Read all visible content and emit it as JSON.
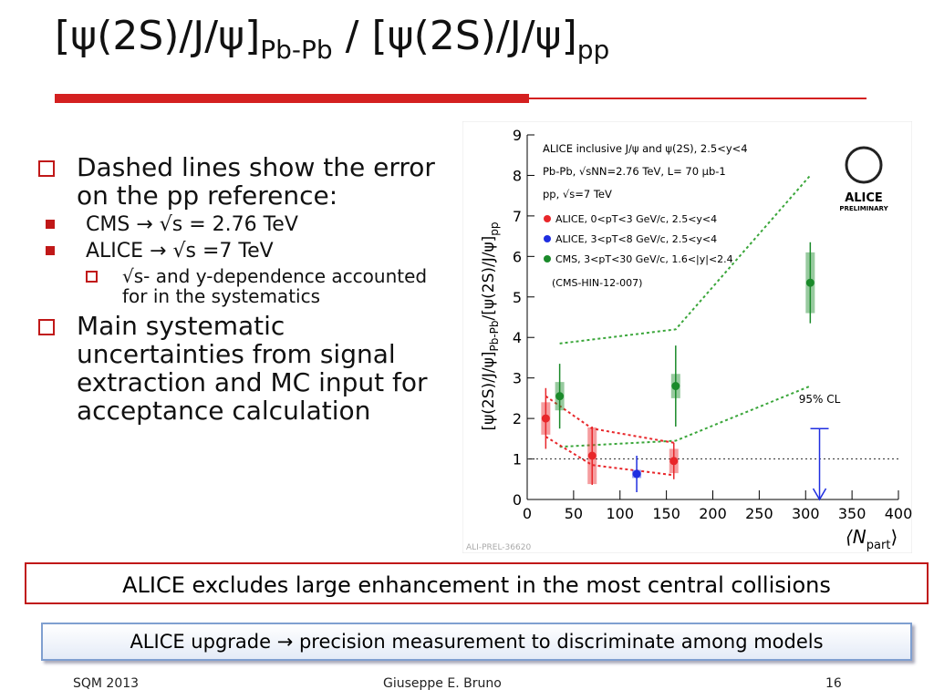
{
  "title": [
    "[ψ(2S)/J/ψ]",
    "Pb-Pb",
    " / [ψ(2S)/J/ψ]",
    "pp"
  ],
  "bullets": [
    {
      "text": "Dashed lines show the error on the pp reference:",
      "items": [
        {
          "text": "CMS → √s = 2.76 TeV"
        },
        {
          "text": "ALICE → √s =7 TeV",
          "items": [
            "√s- and y-dependence accounted for in the systematics"
          ]
        }
      ]
    },
    {
      "text": "Main systematic uncertainties from signal extraction and MC input for acceptance calculation",
      "items": []
    }
  ],
  "chart": {
    "type": "scatter",
    "ylabel": [
      "[ψ(2S)/J/ψ]",
      "Pb-Pb",
      "/[ψ(2S)/J/ψ]",
      "pp"
    ],
    "xlabel": [
      "⟨N",
      "part",
      "⟩"
    ],
    "xlim": [
      0,
      400
    ],
    "xticks": [
      0,
      50,
      100,
      150,
      200,
      250,
      300,
      350,
      400
    ],
    "ylim": [
      0,
      9
    ],
    "yticks": [
      0,
      1,
      2,
      3,
      4,
      5,
      6,
      7,
      8,
      9
    ],
    "reference": 1,
    "legend_header": [
      "ALICE inclusive J/ψ and ψ(2S), 2.5<y<4",
      "Pb-Pb, √sNN=2.76 TeV, L= 70 μb-1",
      "pp, √s=7 TeV"
    ],
    "legend_footer": "(CMS-HIN-12-007)",
    "series": [
      {
        "name": "ALICE, 0<pT<3 GeV/c, 2.5<y<4",
        "color": "#e8262a",
        "x": [
          20,
          70,
          158
        ],
        "values": [
          2.0,
          1.08,
          0.95
        ],
        "errors": [
          0.75,
          0.72,
          0.45
        ],
        "sys_errors": [
          0.4,
          0.7,
          0.3
        ]
      },
      {
        "name": "ALICE, 3<pT<8 GeV/c, 2.5<y<4",
        "color": "#1f2ee0",
        "x": [
          118
        ],
        "values": [
          0.63
        ],
        "errors": [
          0.45
        ],
        "sys_errors": [
          0.1
        ]
      },
      {
        "name": "CMS, 3<pT<30 GeV/c, 1.6<|y|<2.4",
        "color": "#1a8a2a",
        "x": [
          35,
          160,
          305
        ],
        "values": [
          2.55,
          2.8,
          5.35
        ],
        "errors": [
          0.8,
          1.0,
          1.0
        ],
        "sys_errors": [
          0.35,
          0.3,
          0.75
        ]
      }
    ],
    "lines": [
      {
        "color": "#3aa63a",
        "x": [
          35,
          160,
          305
        ],
        "values": [
          3.85,
          4.2,
          8.0
        ]
      },
      {
        "color": "#3aa63a",
        "x": [
          35,
          160,
          305
        ],
        "values": [
          1.3,
          1.45,
          2.8
        ]
      },
      {
        "color": "#e8262a",
        "x": [
          20,
          70,
          158
        ],
        "values": [
          2.55,
          1.75,
          1.4
        ]
      },
      {
        "color": "#e8262a",
        "x": [
          20,
          70,
          158
        ],
        "values": [
          1.55,
          0.85,
          0.6
        ]
      }
    ],
    "limit": {
      "label": "95% CL",
      "x": 315,
      "value": 1.75,
      "color": "#1f2ee0"
    },
    "logo": [
      "ALICE",
      "PRELIMINARY"
    ],
    "tag": "ALI-PREL-36620"
  },
  "callout": "ALICE excludes large enhancement in the most central collisions",
  "banner": "ALICE upgrade → precision measurement to discriminate among models",
  "footer": {
    "left": "SQM 2013",
    "center": "Giuseppe E. Bruno",
    "right": "16"
  }
}
